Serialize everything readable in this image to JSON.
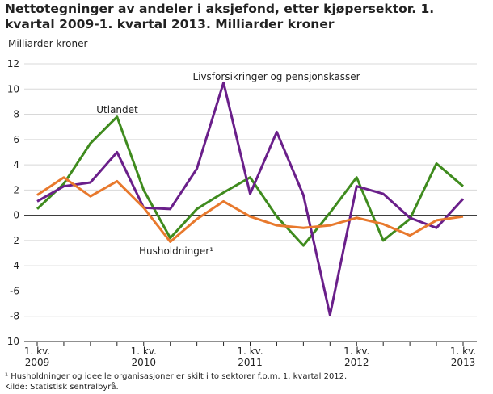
{
  "chart_data": {
    "type": "line",
    "title": "Nettotegninger av andeler i aksjefond, etter kjøpersektor. 1. kvartal 2009-1. kvartal 2013. Milliarder kroner",
    "y_label": "Milliarder kroner",
    "categories": [
      "1. kv.\n2009",
      null,
      null,
      null,
      "1. kv.\n2010",
      null,
      null,
      null,
      "1. kv.\n2011",
      null,
      null,
      null,
      "1. kv.\n2012",
      null,
      null,
      null,
      "1. kv.\n2013"
    ],
    "series": [
      {
        "name": "Utlandet",
        "color": "#3f8b1e",
        "values": [
          0.5,
          2.5,
          5.7,
          7.8,
          2.0,
          -1.8,
          0.5,
          1.8,
          3.0,
          -0.1,
          -2.4,
          0.2,
          3.0,
          -2.0,
          -0.3,
          4.1,
          2.3
        ]
      },
      {
        "name": "Livsforsikringer og pensjonskasser",
        "color": "#6a1f8a",
        "values": [
          1.1,
          2.3,
          2.6,
          5.0,
          0.6,
          0.5,
          3.7,
          10.5,
          1.7,
          6.6,
          1.6,
          -7.9,
          2.3,
          1.7,
          -0.2,
          -1.0,
          1.3
        ]
      },
      {
        "name": "Husholdninger¹",
        "color": "#e8792d",
        "values": [
          1.6,
          3.0,
          1.5,
          2.7,
          0.6,
          -2.1,
          -0.3,
          1.1,
          -0.1,
          -0.8,
          -1.0,
          -0.8,
          -0.2,
          -0.7,
          -1.6,
          -0.4,
          -0.1
        ]
      }
    ],
    "ylim": [
      -10,
      12
    ],
    "yticks": [
      -10,
      -8,
      -6,
      -4,
      -2,
      0,
      2,
      4,
      6,
      8,
      10,
      12
    ],
    "grid": true,
    "footnote": "¹  Husholdninger og ideelle organisasjoner er skilt i to sektorer f.o.m. 1. kvartal 2012.",
    "source": "Kilde: Statistisk sentralbyrå."
  }
}
